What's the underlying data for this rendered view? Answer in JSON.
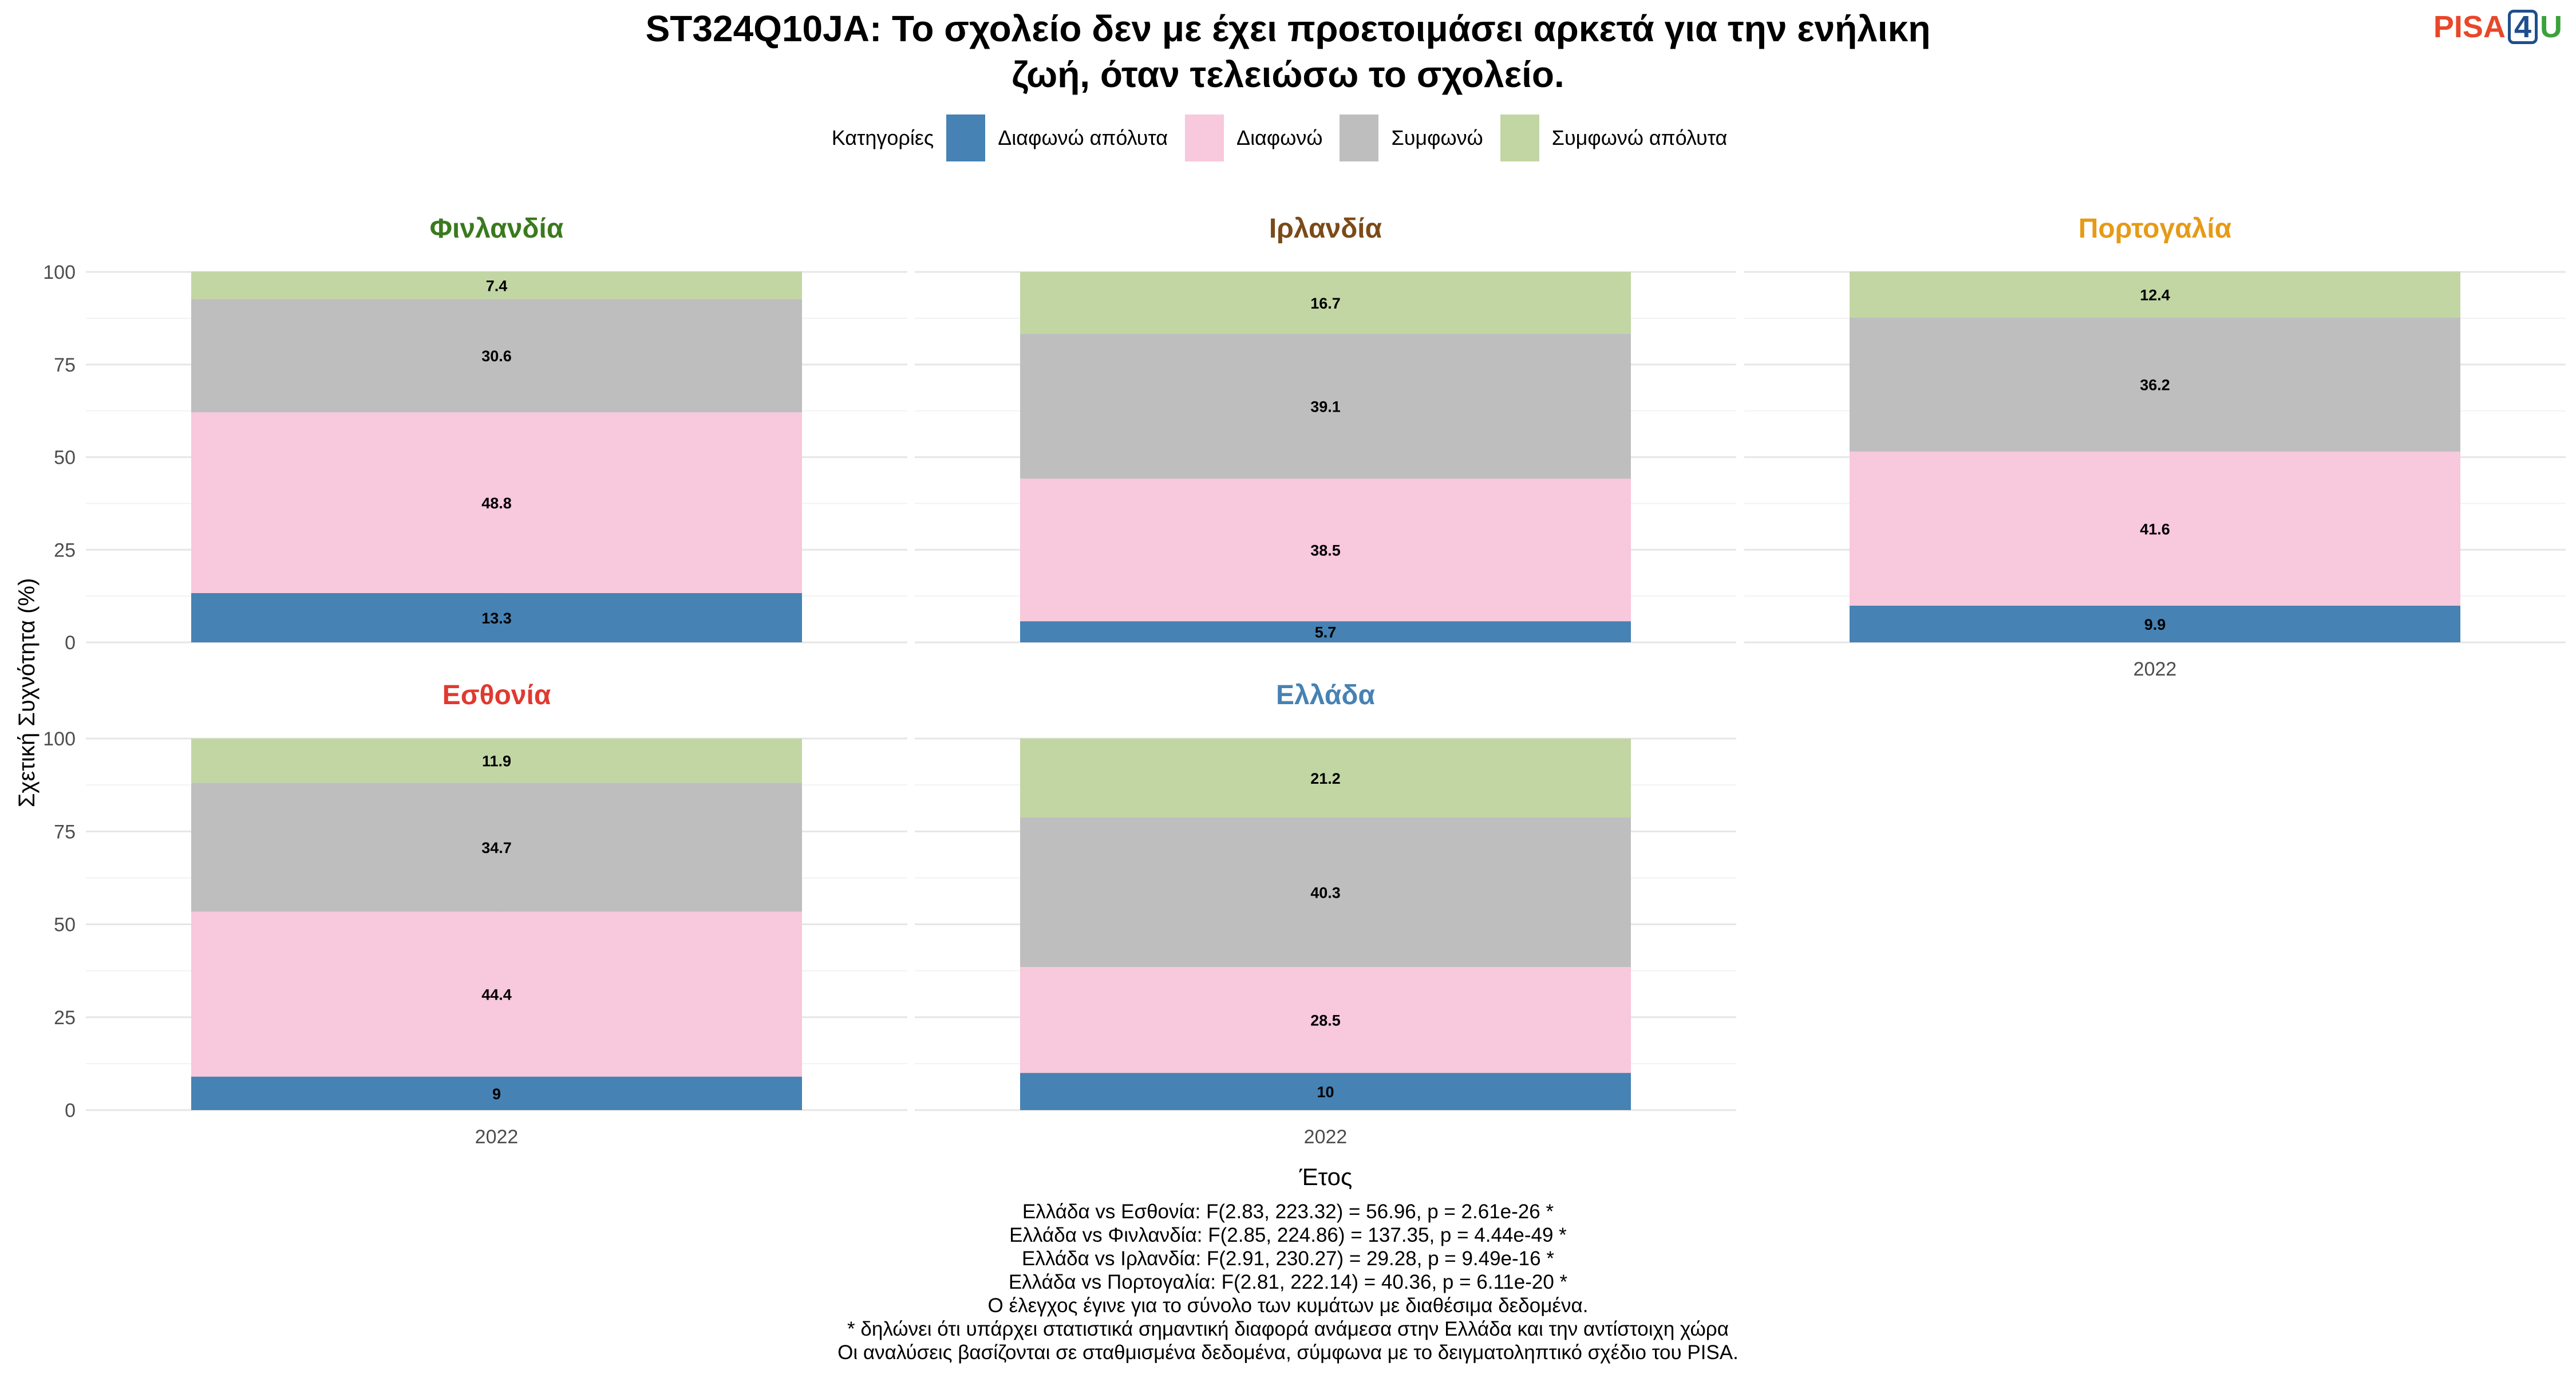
{
  "title_line1": "ST324Q10JA: Το σχολείο δεν με έχει προετοιμάσει αρκετά για την ενήλικη",
  "title_line2": "ζωή, όταν τελειώσω το σχολείο.",
  "logo": {
    "p": "PISA",
    "four": "4",
    "u": "U"
  },
  "colors": {
    "Διαφωνώ απόλυτα": "#4682b4",
    "Διαφωνώ": "#f8c8dc",
    "Συμφωνώ": "#bebebe",
    "Συμφωνώ απόλυτα": "#c2d6a4"
  },
  "chart_data": {
    "type": "bar",
    "stacked": true,
    "ylabel": "Σχετική Συχνότητα (%)",
    "xlabel": "Έτος",
    "ylim": [
      0,
      100
    ],
    "yticks": [
      0,
      25,
      50,
      75,
      100
    ],
    "legend": {
      "title": "Κατηγορίες",
      "placement": "top",
      "entries": [
        "Διαφωνώ απόλυτα",
        "Διαφωνώ",
        "Συμφωνώ",
        "Συμφωνώ απόλυτα"
      ]
    },
    "panels": [
      {
        "name": "Φινλανδία",
        "color": "#3a7a1e",
        "category": "2022",
        "values": [
          13.3,
          48.8,
          30.6,
          7.4
        ]
      },
      {
        "name": "Ιρλανδία",
        "color": "#7b4a19",
        "category": "2022",
        "values": [
          5.7,
          38.5,
          39.1,
          16.7
        ]
      },
      {
        "name": "Πορτογαλία",
        "color": "#e69a16",
        "category": "2022",
        "values": [
          9.9,
          41.6,
          36.2,
          12.4
        ]
      },
      {
        "name": "Εσθονία",
        "color": "#e03a30",
        "category": "2022",
        "values": [
          9,
          44.4,
          34.7,
          11.9
        ]
      },
      {
        "name": "Ελλάδα",
        "color": "#4682b4",
        "category": "2022",
        "values": [
          10,
          28.5,
          40.3,
          21.2
        ]
      }
    ]
  },
  "notes": [
    "Ελλάδα vs Εσθονία: F(2.83, 223.32) = 56.96, p = 2.61e-26 *",
    "Ελλάδα vs Φινλανδία: F(2.85, 224.86) = 137.35, p = 4.44e-49 *",
    "Ελλάδα vs Ιρλανδία: F(2.91, 230.27) = 29.28, p = 9.49e-16 *",
    "Ελλάδα vs Πορτογαλία: F(2.81, 222.14) = 40.36, p = 6.11e-20 *",
    "Ο έλεγχος έγινε για το σύνολο των κυμάτων με διαθέσιμα δεδομένα.",
    "* δηλώνει ότι υπάρχει στατιστικά σημαντική διαφορά ανάμεσα στην Ελλάδα και την αντίστοιχη χώρα",
    "Οι αναλύσεις βασίζονται σε σταθμισμένα δεδομένα, σύμφωνα με το δειγματοληπτικό σχέδιο του PISA."
  ]
}
